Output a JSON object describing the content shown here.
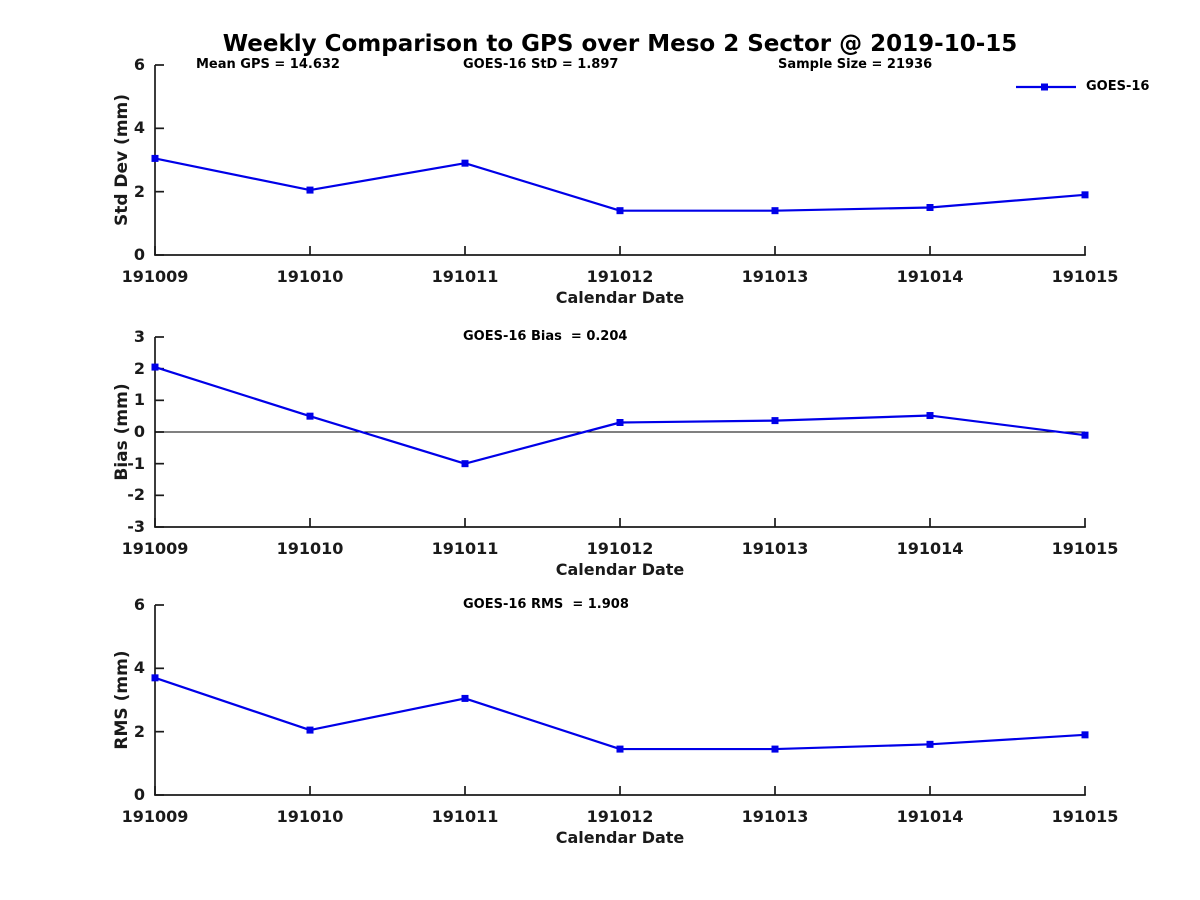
{
  "title": "Weekly Comparison to GPS over Meso 2 Sector @ 2019-10-15",
  "legend": {
    "label": "GOES-16"
  },
  "colors": {
    "line": "#0000E8",
    "axis": "#1a1a1a",
    "zero_line": "#000000"
  },
  "chart_data": [
    {
      "type": "line",
      "panel": "std_dev",
      "annotations": {
        "left": "Mean GPS = 14.632",
        "center": "GOES-16 StD = 1.897",
        "right": "Sample Size = 21936"
      },
      "categories": [
        "191009",
        "191010",
        "191011",
        "191012",
        "191013",
        "191014",
        "191015"
      ],
      "series": [
        {
          "name": "GOES-16",
          "values": [
            3.05,
            2.05,
            2.9,
            1.4,
            1.4,
            1.5,
            1.9
          ]
        }
      ],
      "xlabel": "Calendar Date",
      "ylabel": "Std Dev (mm)",
      "ylim": [
        0,
        6
      ],
      "yticks": [
        0,
        2,
        4,
        6
      ],
      "zero_line": false,
      "legend_position": "top-right",
      "grid": false
    },
    {
      "type": "line",
      "panel": "bias",
      "annotations": {
        "center": "GOES-16 Bias  = 0.204"
      },
      "categories": [
        "191009",
        "191010",
        "191011",
        "191012",
        "191013",
        "191014",
        "191015"
      ],
      "series": [
        {
          "name": "GOES-16",
          "values": [
            2.05,
            0.5,
            -1.0,
            0.3,
            0.36,
            0.52,
            -0.1
          ]
        }
      ],
      "xlabel": "Calendar Date",
      "ylabel": "Bias (mm)",
      "ylim": [
        -3,
        3
      ],
      "yticks": [
        -3,
        -2,
        -1,
        0,
        1,
        2,
        3
      ],
      "zero_line": true,
      "grid": false
    },
    {
      "type": "line",
      "panel": "rms",
      "annotations": {
        "center": "GOES-16 RMS  = 1.908"
      },
      "categories": [
        "191009",
        "191010",
        "191011",
        "191012",
        "191013",
        "191014",
        "191015"
      ],
      "series": [
        {
          "name": "GOES-16",
          "values": [
            3.7,
            2.05,
            3.05,
            1.45,
            1.45,
            1.6,
            1.9
          ]
        }
      ],
      "xlabel": "Calendar Date",
      "ylabel": "RMS (mm)",
      "ylim": [
        0,
        6
      ],
      "yticks": [
        0,
        2,
        4,
        6
      ],
      "zero_line": false,
      "grid": false
    }
  ]
}
